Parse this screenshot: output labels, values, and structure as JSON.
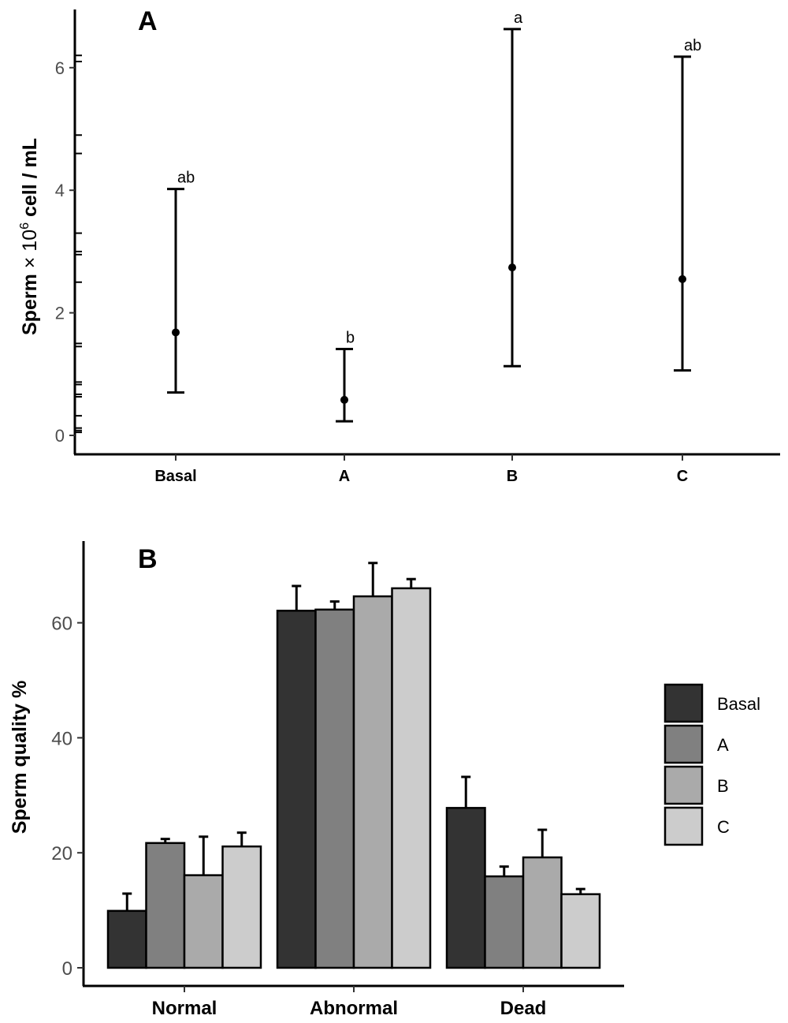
{
  "chart_data": [
    {
      "type": "scatter",
      "panel": "A",
      "title": "A",
      "xlabel": "",
      "ylabel": "Sperm × 10^6 cell / mL",
      "ylabel_parts": {
        "main": "Sperm ",
        "times": "× 10",
        "sup": "6",
        "rest": " cell / mL"
      },
      "categories": [
        "Basal",
        "A",
        "B",
        "C"
      ],
      "ylim": [
        -0.3,
        6.9
      ],
      "yticks": [
        0,
        2,
        4,
        6
      ],
      "ytick_labels": [
        "0",
        "2",
        "4",
        "6"
      ],
      "grid": false,
      "points": [
        {
          "category": "Basal",
          "value": 1.68,
          "upper": 4.02,
          "lower": 0.7,
          "label": "ab"
        },
        {
          "category": "A",
          "value": 0.58,
          "upper": 1.41,
          "lower": 0.23,
          "label": "b"
        },
        {
          "category": "B",
          "value": 2.74,
          "upper": 6.63,
          "lower": 1.13,
          "label": "a"
        },
        {
          "category": "C",
          "value": 2.55,
          "upper": 6.18,
          "lower": 1.06,
          "label": "ab"
        }
      ],
      "rug_y": [
        6.2,
        6.1,
        4.9,
        4.6,
        3.3,
        3.0,
        2.95,
        2.5,
        1.5,
        1.45,
        0.87,
        0.83,
        0.67,
        0.63,
        0.32,
        0.12,
        0.08,
        0.05
      ]
    },
    {
      "type": "bar",
      "panel": "B",
      "title": "B",
      "xlabel": "",
      "ylabel": "Sperm quality %",
      "categories": [
        "Normal",
        "Abnormal",
        "Dead"
      ],
      "ylim": [
        -3,
        74
      ],
      "yticks": [
        0,
        20,
        40,
        60
      ],
      "ytick_labels": [
        "0",
        "20",
        "40",
        "60"
      ],
      "grid": false,
      "legend": {
        "position": "right",
        "entries": [
          "Basal",
          "A",
          "B",
          "C"
        ]
      },
      "series": [
        {
          "name": "Basal",
          "color": "#333333",
          "values": [
            9.9,
            62.1,
            27.8
          ],
          "errors": [
            3.0,
            4.3,
            5.4
          ]
        },
        {
          "name": "A",
          "color": "#808080",
          "values": [
            21.7,
            62.3,
            15.9
          ],
          "errors": [
            0.7,
            1.4,
            1.7
          ]
        },
        {
          "name": "B",
          "color": "#aaaaaa",
          "values": [
            16.1,
            64.6,
            19.2
          ],
          "errors": [
            6.7,
            5.8,
            4.8
          ]
        },
        {
          "name": "C",
          "color": "#cccccc",
          "values": [
            21.1,
            66.0,
            12.8
          ],
          "errors": [
            2.4,
            1.6,
            0.9
          ]
        }
      ]
    }
  ]
}
